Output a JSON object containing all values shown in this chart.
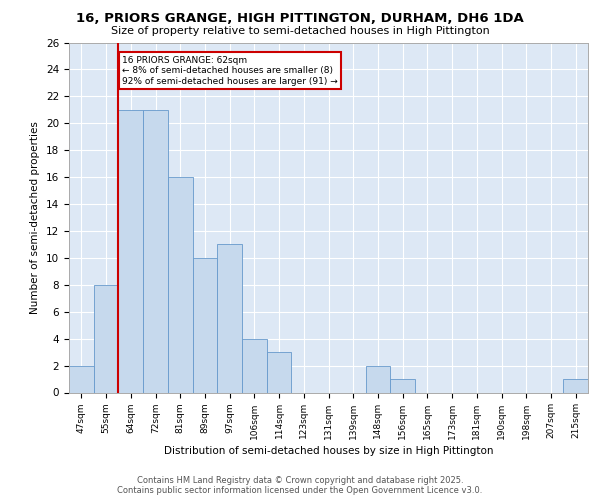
{
  "title": "16, PRIORS GRANGE, HIGH PITTINGTON, DURHAM, DH6 1DA",
  "subtitle": "Size of property relative to semi-detached houses in High Pittington",
  "xlabel": "Distribution of semi-detached houses by size in High Pittington",
  "ylabel": "Number of semi-detached properties",
  "categories": [
    "47sqm",
    "55sqm",
    "64sqm",
    "72sqm",
    "81sqm",
    "89sqm",
    "97sqm",
    "106sqm",
    "114sqm",
    "123sqm",
    "131sqm",
    "139sqm",
    "148sqm",
    "156sqm",
    "165sqm",
    "173sqm",
    "181sqm",
    "190sqm",
    "198sqm",
    "207sqm",
    "215sqm"
  ],
  "values": [
    2,
    8,
    21,
    21,
    16,
    10,
    11,
    4,
    3,
    0,
    0,
    0,
    2,
    1,
    0,
    0,
    0,
    0,
    0,
    0,
    1
  ],
  "bar_color": "#c6d9ed",
  "bar_edge_color": "#6699cc",
  "vline_x_index": 1.5,
  "vline_color": "#cc0000",
  "annotation_text": "16 PRIORS GRANGE: 62sqm\n← 8% of semi-detached houses are smaller (8)\n92% of semi-detached houses are larger (91) →",
  "annotation_box_facecolor": "#ffffff",
  "annotation_box_edgecolor": "#cc0000",
  "ylim": [
    0,
    26
  ],
  "yticks": [
    0,
    2,
    4,
    6,
    8,
    10,
    12,
    14,
    16,
    18,
    20,
    22,
    24,
    26
  ],
  "bg_color": "#dde8f5",
  "fig_bg_color": "#ffffff",
  "footer_line1": "Contains HM Land Registry data © Crown copyright and database right 2025.",
  "footer_line2": "Contains public sector information licensed under the Open Government Licence v3.0."
}
